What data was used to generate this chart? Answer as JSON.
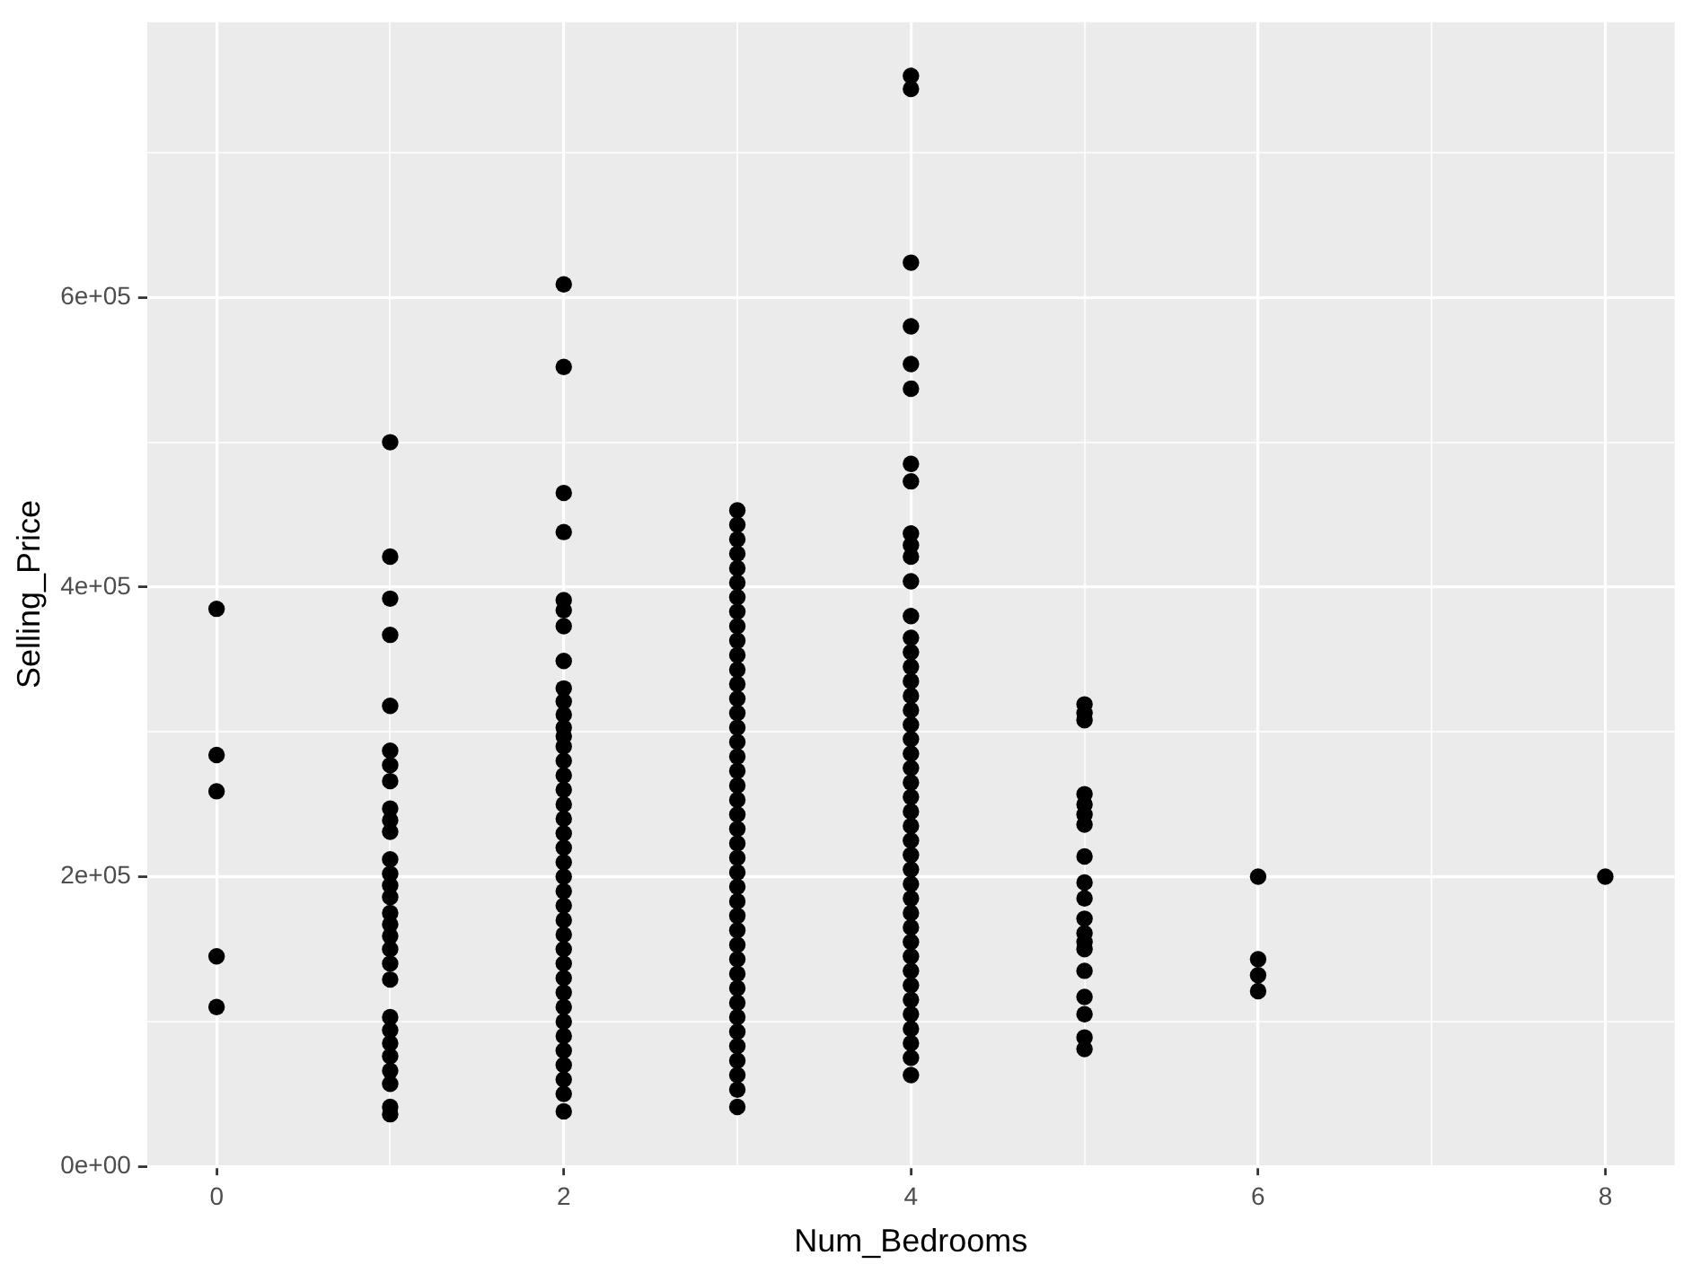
{
  "chart_data": {
    "type": "scatter",
    "xlabel": "Num_Bedrooms",
    "ylabel": "Selling_Price",
    "xlim": [
      -0.4,
      8.4
    ],
    "xticks": [
      0,
      {
        "value": 1,
        "label": null
      },
      2,
      {
        "value": 3,
        "label": null
      },
      4,
      {
        "value": 5,
        "label": null
      },
      6,
      {
        "value": 7,
        "label": null
      },
      8
    ],
    "ylim": [
      0,
      790000
    ],
    "yticks": [
      {
        "value": 0,
        "label": "0e+00"
      },
      {
        "value": 100000,
        "label": null
      },
      {
        "value": 200000,
        "label": "2e+05"
      },
      {
        "value": 300000,
        "label": null
      },
      {
        "value": 400000,
        "label": "4e+05"
      },
      {
        "value": 500000,
        "label": null
      },
      {
        "value": 600000,
        "label": "6e+05"
      },
      {
        "value": 700000,
        "label": null
      }
    ],
    "grid": true,
    "legend": false,
    "marker": "circle",
    "series": [
      {
        "color": "#000000",
        "x": [
          0,
          0,
          0,
          0,
          0
        ],
        "values": [
          385000,
          284000,
          259000,
          145000,
          110000
        ]
      },
      {
        "color": "#000000",
        "x": [
          1,
          1,
          1,
          1,
          1,
          1,
          1,
          1,
          1,
          1,
          1,
          1,
          1,
          1,
          1,
          1,
          1,
          1,
          1,
          1,
          1,
          1,
          1,
          1,
          1,
          1,
          1,
          1,
          1
        ],
        "values": [
          500000,
          421000,
          392000,
          367000,
          318000,
          287000,
          277000,
          266000,
          247000,
          239000,
          231000,
          212000,
          202000,
          194000,
          186000,
          175000,
          167000,
          159000,
          150000,
          140000,
          129000,
          103000,
          94000,
          85000,
          76000,
          66000,
          57000,
          41000,
          36000
        ]
      },
      {
        "color": "#000000",
        "x": [
          2,
          2,
          2,
          2,
          2,
          2,
          2,
          2,
          2,
          2,
          2,
          2,
          2,
          2,
          2,
          2,
          2,
          2,
          2,
          2,
          2,
          2,
          2,
          2,
          2,
          2,
          2,
          2,
          2,
          2,
          2,
          2,
          2,
          2,
          2,
          2,
          2,
          2,
          2
        ],
        "values": [
          609000,
          552000,
          465000,
          438000,
          391000,
          384000,
          373000,
          349000,
          330000,
          321000,
          312000,
          303000,
          297000,
          290000,
          280000,
          270000,
          260000,
          250000,
          240000,
          230000,
          220000,
          210000,
          200000,
          190000,
          180000,
          170000,
          160000,
          150000,
          140000,
          130000,
          120000,
          110000,
          100000,
          90000,
          80000,
          70000,
          60000,
          50000,
          38000
        ]
      },
      {
        "color": "#000000",
        "x": [
          3,
          3,
          3,
          3,
          3,
          3,
          3,
          3,
          3,
          3,
          3,
          3,
          3,
          3,
          3,
          3,
          3,
          3,
          3,
          3,
          3,
          3,
          3,
          3,
          3,
          3,
          3,
          3,
          3,
          3,
          3,
          3,
          3,
          3,
          3,
          3,
          3,
          3,
          3,
          3,
          3,
          3
        ],
        "values": [
          453000,
          443000,
          433000,
          423000,
          413000,
          403000,
          393000,
          383000,
          373000,
          363000,
          353000,
          343000,
          333000,
          323000,
          313000,
          303000,
          293000,
          283000,
          273000,
          263000,
          253000,
          243000,
          233000,
          223000,
          213000,
          203000,
          193000,
          183000,
          173000,
          163000,
          153000,
          143000,
          133000,
          123000,
          113000,
          103000,
          93000,
          83000,
          73000,
          63000,
          53000,
          41000
        ]
      },
      {
        "color": "#000000",
        "x": [
          4,
          4,
          4,
          4,
          4,
          4,
          4,
          4,
          4,
          4,
          4,
          4,
          4,
          4,
          4,
          4,
          4,
          4,
          4,
          4,
          4,
          4,
          4,
          4,
          4,
          4,
          4,
          4,
          4,
          4,
          4,
          4,
          4,
          4,
          4,
          4,
          4,
          4,
          4,
          4,
          4,
          4,
          4,
          4
        ],
        "values": [
          753000,
          744000,
          624000,
          580000,
          554000,
          537000,
          485000,
          473000,
          437000,
          429000,
          421000,
          404000,
          380000,
          365000,
          355000,
          345000,
          335000,
          325000,
          315000,
          305000,
          295000,
          285000,
          275000,
          265000,
          255000,
          245000,
          235000,
          225000,
          215000,
          205000,
          195000,
          185000,
          175000,
          165000,
          155000,
          145000,
          135000,
          125000,
          115000,
          105000,
          95000,
          85000,
          75000,
          63000
        ]
      },
      {
        "color": "#000000",
        "x": [
          5,
          5,
          5,
          5,
          5,
          5,
          5,
          5,
          5,
          5,
          5,
          5,
          5,
          5,
          5,
          5,
          5,
          5,
          5
        ],
        "values": [
          319000,
          313000,
          308000,
          257000,
          250000,
          243000,
          236000,
          214000,
          196000,
          185000,
          171000,
          161000,
          155000,
          150000,
          135000,
          117000,
          105000,
          89000,
          81000
        ]
      },
      {
        "color": "#000000",
        "x": [
          6,
          6,
          6,
          6
        ],
        "values": [
          200000,
          143000,
          132000,
          121000
        ]
      },
      {
        "color": "#000000",
        "x": [
          8
        ],
        "values": [
          200000
        ]
      }
    ]
  }
}
